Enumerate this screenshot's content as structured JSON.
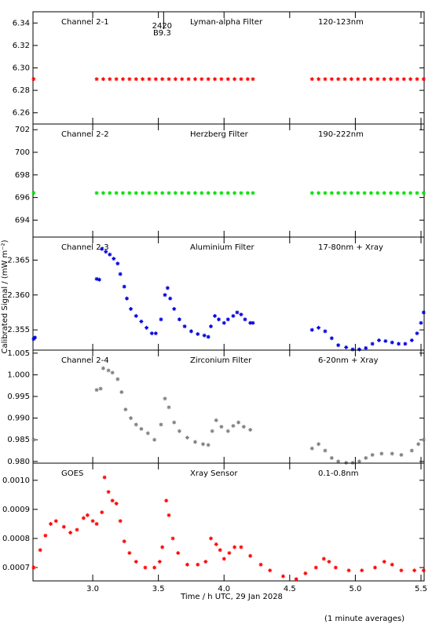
{
  "chart_data": [
    {
      "type": "scatter",
      "color": "#ff0000",
      "label_color": "#cc0000",
      "labels": [
        "Channel 2-1",
        "Lyman-alpha Filter",
        "120-123nm"
      ],
      "annotation": {
        "x": 3.54,
        "lines": [
          "2420",
          "B9.3"
        ]
      },
      "x": [
        2.55,
        3.03,
        3.08,
        3.13,
        3.18,
        3.23,
        3.28,
        3.33,
        3.38,
        3.43,
        3.48,
        3.53,
        3.58,
        3.63,
        3.68,
        3.73,
        3.78,
        3.83,
        3.88,
        3.93,
        3.98,
        4.03,
        4.08,
        4.13,
        4.18,
        4.22,
        4.67,
        4.72,
        4.77,
        4.82,
        4.87,
        4.92,
        4.97,
        5.02,
        5.07,
        5.12,
        5.17,
        5.22,
        5.27,
        5.32,
        5.37,
        5.42,
        5.47,
        5.52
      ],
      "values": [
        6.29,
        6.29,
        6.29,
        6.29,
        6.29,
        6.29,
        6.29,
        6.29,
        6.29,
        6.29,
        6.29,
        6.29,
        6.29,
        6.29,
        6.29,
        6.29,
        6.29,
        6.29,
        6.29,
        6.29,
        6.29,
        6.29,
        6.29,
        6.29,
        6.29,
        6.29,
        6.29,
        6.29,
        6.29,
        6.29,
        6.29,
        6.29,
        6.29,
        6.29,
        6.29,
        6.29,
        6.29,
        6.29,
        6.29,
        6.29,
        6.29,
        6.29,
        6.29,
        6.29
      ],
      "ylim": [
        6.25,
        6.35
      ],
      "yticks": [
        6.26,
        6.28,
        {
          "value": 6.3,
          "label": "6.30"
        },
        6.32,
        6.34
      ]
    },
    {
      "type": "scatter",
      "color": "#00e000",
      "label_color": "#00cc00",
      "labels": [
        "Channel 2-2",
        "Herzberg Filter",
        "190-222nm"
      ],
      "x": [
        2.55,
        3.03,
        3.08,
        3.13,
        3.18,
        3.23,
        3.28,
        3.33,
        3.38,
        3.43,
        3.48,
        3.53,
        3.58,
        3.63,
        3.68,
        3.73,
        3.78,
        3.83,
        3.88,
        3.93,
        3.98,
        4.03,
        4.08,
        4.13,
        4.18,
        4.22,
        4.67,
        4.72,
        4.77,
        4.82,
        4.87,
        4.92,
        4.97,
        5.02,
        5.07,
        5.12,
        5.17,
        5.22,
        5.27,
        5.32,
        5.37,
        5.42,
        5.47,
        5.52
      ],
      "values": [
        696.4,
        696.4,
        696.4,
        696.4,
        696.4,
        696.4,
        696.4,
        696.4,
        696.4,
        696.4,
        696.4,
        696.4,
        696.4,
        696.4,
        696.4,
        696.4,
        696.4,
        696.4,
        696.4,
        696.4,
        696.4,
        696.4,
        696.4,
        696.4,
        696.4,
        696.4,
        696.4,
        696.4,
        696.4,
        696.4,
        696.4,
        696.4,
        696.4,
        696.4,
        696.4,
        696.4,
        696.4,
        696.4,
        696.4,
        696.4,
        696.4,
        696.4,
        696.4,
        696.4
      ],
      "ylim": [
        692.5,
        702.5
      ],
      "yticks": [
        694,
        696,
        698,
        700,
        702
      ]
    },
    {
      "type": "scatter",
      "color": "#0000dd",
      "label_color": "#0000cc",
      "labels": [
        "Channel 2-3",
        "Aluminium Filter",
        "17-80nm + Xray"
      ],
      "x": [
        2.55,
        2.56,
        3.03,
        3.05,
        3.07,
        3.1,
        3.13,
        3.16,
        3.19,
        3.21,
        3.24,
        3.26,
        3.29,
        3.33,
        3.37,
        3.41,
        3.45,
        3.48,
        3.52,
        3.55,
        3.57,
        3.59,
        3.62,
        3.66,
        3.7,
        3.75,
        3.8,
        3.85,
        3.88,
        3.9,
        3.93,
        3.96,
        4.0,
        4.03,
        4.07,
        4.1,
        4.13,
        4.16,
        4.2,
        4.22,
        4.67,
        4.72,
        4.77,
        4.82,
        4.87,
        4.93,
        4.98,
        5.03,
        5.08,
        5.13,
        5.18,
        5.23,
        5.28,
        5.33,
        5.38,
        5.43,
        5.47,
        5.5,
        5.52
      ],
      "values": [
        2.3537,
        2.3539,
        2.3623,
        2.3622,
        2.3666,
        2.3662,
        2.3658,
        2.3652,
        2.3645,
        2.363,
        2.3612,
        2.3595,
        2.358,
        2.357,
        2.3562,
        2.3553,
        2.3545,
        2.3545,
        2.3565,
        2.36,
        2.361,
        2.3595,
        2.358,
        2.3565,
        2.3555,
        2.3548,
        2.3544,
        2.3542,
        2.354,
        2.3555,
        2.357,
        2.3565,
        2.356,
        2.3565,
        2.357,
        2.3575,
        2.3572,
        2.3565,
        2.356,
        2.356,
        2.355,
        2.3553,
        2.3548,
        2.3538,
        2.3528,
        2.3525,
        2.3522,
        2.3522,
        2.3524,
        2.353,
        2.3535,
        2.3534,
        2.3532,
        2.353,
        2.353,
        2.3535,
        2.3545,
        2.356,
        2.3575
      ],
      "ylim": [
        2.3521,
        2.3683
      ],
      "yticks": [
        2.355,
        {
          "value": 2.36,
          "label": "2.360"
        },
        2.365
      ]
    },
    {
      "type": "scatter",
      "color": "#808080",
      "label_color": "#808080",
      "labels": [
        "Channel 2-4",
        "Zirconium Filter",
        "6-20nm + Xray"
      ],
      "x": [
        2.55,
        3.03,
        3.06,
        3.08,
        3.12,
        3.15,
        3.19,
        3.22,
        3.25,
        3.29,
        3.33,
        3.37,
        3.42,
        3.47,
        3.52,
        3.55,
        3.58,
        3.62,
        3.66,
        3.72,
        3.78,
        3.84,
        3.88,
        3.91,
        3.94,
        3.98,
        4.03,
        4.07,
        4.11,
        4.15,
        4.2,
        4.67,
        4.72,
        4.77,
        4.82,
        4.87,
        4.93,
        4.98,
        5.03,
        5.08,
        5.13,
        5.2,
        5.28,
        5.35,
        5.43,
        5.48,
        5.52
      ],
      "values": [
        0.985,
        0.9965,
        0.9968,
        1.0015,
        1.001,
        1.0005,
        0.999,
        0.996,
        0.992,
        0.99,
        0.9885,
        0.9875,
        0.9865,
        0.985,
        0.9885,
        0.9945,
        0.9925,
        0.989,
        0.987,
        0.9855,
        0.9845,
        0.984,
        0.9838,
        0.987,
        0.9895,
        0.988,
        0.987,
        0.9882,
        0.989,
        0.988,
        0.9873,
        0.983,
        0.984,
        0.9825,
        0.9808,
        0.98,
        0.9797,
        0.9797,
        0.98,
        0.9808,
        0.9815,
        0.9818,
        0.9818,
        0.9815,
        0.9825,
        0.984,
        0.985
      ],
      "ylim": [
        0.9796,
        1.0057
      ],
      "yticks": [
        {
          "value": 0.98,
          "label": "0.980"
        },
        0.985,
        {
          "value": 0.99,
          "label": "0.990"
        },
        0.995,
        {
          "value": 1,
          "label": "1.000"
        },
        1.005
      ]
    },
    {
      "type": "scatter",
      "color": "#ff0000",
      "label_color": "#cc0000",
      "labels": [
        "GOES",
        "Xray Sensor",
        "0.1-0.8nm"
      ],
      "x": [
        2.55,
        2.6,
        2.64,
        2.68,
        2.72,
        2.78,
        2.83,
        2.88,
        2.93,
        2.96,
        3.0,
        3.03,
        3.07,
        3.09,
        3.12,
        3.15,
        3.18,
        3.21,
        3.24,
        3.28,
        3.33,
        3.4,
        3.47,
        3.51,
        3.53,
        3.56,
        3.58,
        3.61,
        3.65,
        3.72,
        3.8,
        3.86,
        3.9,
        3.94,
        3.97,
        4.0,
        4.04,
        4.08,
        4.13,
        4.2,
        4.28,
        4.35,
        4.45,
        4.55,
        4.62,
        4.7,
        4.76,
        4.8,
        4.85,
        4.95,
        5.05,
        5.15,
        5.22,
        5.28,
        5.35,
        5.45,
        5.52
      ],
      "values": [
        0.0007,
        0.00076,
        0.00081,
        0.00085,
        0.00086,
        0.00084,
        0.00082,
        0.00083,
        0.00087,
        0.00088,
        0.00086,
        0.00085,
        0.00089,
        0.00101,
        0.00096,
        0.00093,
        0.00092,
        0.00086,
        0.00079,
        0.00075,
        0.00072,
        0.0007,
        0.0007,
        0.00072,
        0.00077,
        0.00093,
        0.00088,
        0.0008,
        0.00075,
        0.00071,
        0.00071,
        0.00072,
        0.0008,
        0.00078,
        0.00076,
        0.00073,
        0.00075,
        0.00077,
        0.00077,
        0.00074,
        0.00071,
        0.00069,
        0.00067,
        0.00066,
        0.00068,
        0.0007,
        0.00073,
        0.00072,
        0.0007,
        0.00069,
        0.00069,
        0.0007,
        0.00072,
        0.00071,
        0.00069,
        0.00069,
        0.00069
      ],
      "ylim": [
        0.000654,
        0.001059
      ],
      "yticks": [
        0.0007,
        0.0008,
        0.0009,
        {
          "value": 0.001,
          "label": "0.0010"
        }
      ],
      "xlabel": "Time / h UTC, 29 Jan 2028",
      "xlim": [
        2.545,
        5.524
      ],
      "xticks": [
        {
          "value": 3,
          "label": "3.0"
        },
        3.5,
        {
          "value": 4,
          "label": "4.0"
        },
        4.5,
        {
          "value": 5,
          "label": "5.0"
        },
        5.5
      ]
    }
  ],
  "ylabel": "Calibrated Signal / (mW m⁻²)",
  "footnote": "(1 minute averages)"
}
